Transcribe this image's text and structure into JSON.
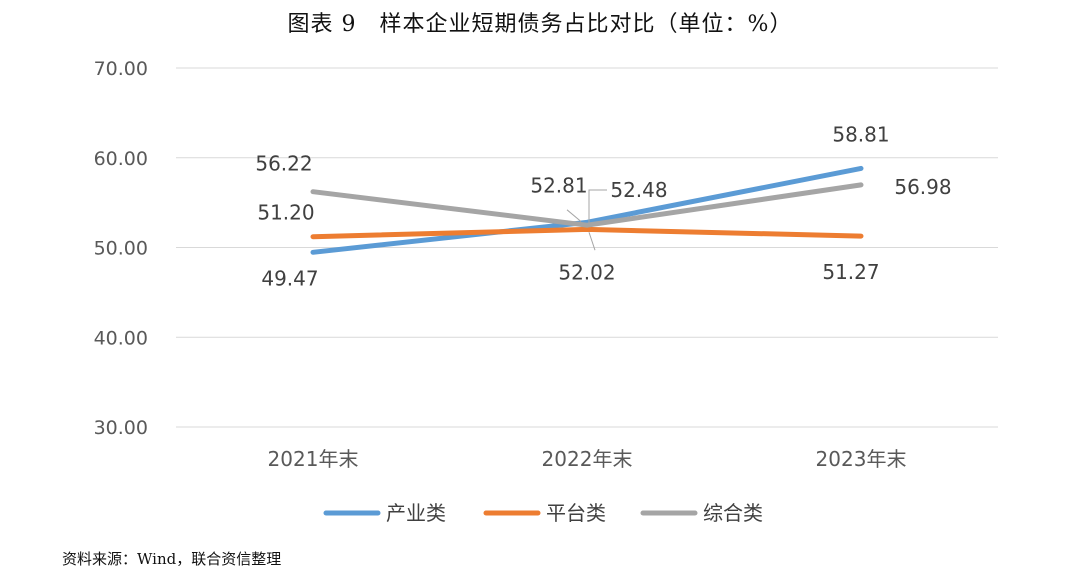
{
  "title": "图表 9　样本企业短期债务占比对比（单位：%）",
  "source": "资料来源：Wind，联合资信整理",
  "colors": {
    "industry": "#5B9BD5",
    "platform": "#ED7D31",
    "composite": "#A5A5A5",
    "grid": "#D9D9D9"
  },
  "chart_data": {
    "type": "line",
    "title": "图表 9　样本企业短期债务占比对比（单位：%）",
    "xlabel": "",
    "ylabel": "",
    "categories": [
      "2021年末",
      "2022年末",
      "2023年末"
    ],
    "ylim": [
      30,
      70
    ],
    "yticks": [
      "30.00",
      "40.00",
      "50.00",
      "60.00",
      "70.00"
    ],
    "grid": true,
    "legend_position": "bottom",
    "series": [
      {
        "name": "产业类",
        "values": [
          49.47,
          52.81,
          58.81
        ],
        "labels": [
          "49.47",
          "52.81",
          "58.81"
        ]
      },
      {
        "name": "平台类",
        "values": [
          51.2,
          52.02,
          51.27
        ],
        "labels": [
          "51.20",
          "52.02",
          "51.27"
        ]
      },
      {
        "name": "综合类",
        "values": [
          56.22,
          52.48,
          56.98
        ],
        "labels": [
          "56.22",
          "52.48",
          "56.98"
        ]
      }
    ]
  }
}
